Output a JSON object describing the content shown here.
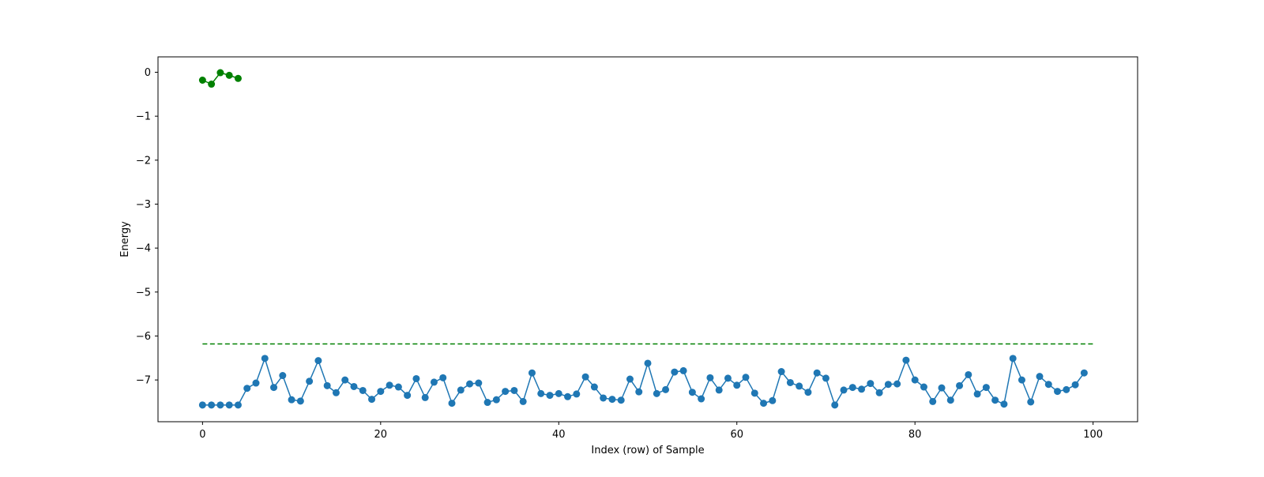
{
  "chart_data": {
    "type": "line",
    "title": "",
    "xlabel": "Index (row) of Sample",
    "ylabel": "Energy",
    "xlim": [
      -5,
      105
    ],
    "ylim": [
      -7.95,
      0.35
    ],
    "xticks": [
      0,
      20,
      40,
      60,
      80,
      100
    ],
    "yticks": [
      0,
      -1,
      -2,
      -3,
      -4,
      -5,
      -6,
      -7
    ],
    "xtick_labels": [
      "0",
      "20",
      "40",
      "60",
      "80",
      "100"
    ],
    "ytick_labels": [
      "0",
      "−1",
      "−2",
      "−3",
      "−4",
      "−5",
      "−6",
      "−7"
    ],
    "grid": false,
    "legend": "none",
    "series": [
      {
        "kind": "line-markers",
        "color": "#1f77b4",
        "x": [
          0,
          1,
          2,
          3,
          4,
          5,
          6,
          7,
          8,
          9,
          10,
          11,
          12,
          13,
          14,
          15,
          16,
          17,
          18,
          19,
          20,
          21,
          22,
          23,
          24,
          25,
          26,
          27,
          28,
          29,
          30,
          31,
          32,
          33,
          34,
          35,
          36,
          37,
          38,
          39,
          40,
          41,
          42,
          43,
          44,
          45,
          46,
          47,
          48,
          49,
          50,
          51,
          52,
          53,
          54,
          55,
          56,
          57,
          58,
          59,
          60,
          61,
          62,
          63,
          64,
          65,
          66,
          67,
          68,
          69,
          70,
          71,
          72,
          73,
          74,
          75,
          76,
          77,
          78,
          79,
          80,
          81,
          82,
          83,
          84,
          85,
          86,
          87,
          88,
          89,
          90,
          91,
          92,
          93,
          94,
          95,
          96,
          97,
          98,
          99
        ],
        "y": [
          -7.57,
          -7.57,
          -7.57,
          -7.57,
          -7.57,
          -7.19,
          -7.07,
          -6.51,
          -7.17,
          -6.9,
          -7.45,
          -7.48,
          -7.03,
          -6.56,
          -7.13,
          -7.29,
          -7.0,
          -7.15,
          -7.24,
          -7.44,
          -7.26,
          -7.12,
          -7.16,
          -7.35,
          -6.97,
          -7.4,
          -7.05,
          -6.95,
          -7.53,
          -7.23,
          -7.09,
          -7.07,
          -7.51,
          -7.45,
          -7.26,
          -7.24,
          -7.49,
          -6.84,
          -7.31,
          -7.35,
          -7.31,
          -7.38,
          -7.32,
          -6.93,
          -7.16,
          -7.41,
          -7.44,
          -7.46,
          -6.98,
          -7.27,
          -6.62,
          -7.31,
          -7.22,
          -6.82,
          -6.79,
          -7.28,
          -7.43,
          -6.95,
          -7.23,
          -6.96,
          -7.12,
          -6.94,
          -7.3,
          -7.53,
          -7.47,
          -6.81,
          -7.06,
          -7.14,
          -7.28,
          -6.84,
          -6.96,
          -7.57,
          -7.23,
          -7.17,
          -7.21,
          -7.08,
          -7.29,
          -7.1,
          -7.09,
          -6.55,
          -7.0,
          -7.16,
          -7.49,
          -7.18,
          -7.46,
          -7.13,
          -6.88,
          -7.32,
          -7.17,
          -7.46,
          -7.55,
          -6.51,
          -7.0,
          -7.5,
          -6.92,
          -7.1,
          -7.26,
          -7.22,
          -7.11,
          -6.84
        ]
      },
      {
        "kind": "line-markers",
        "color": "#008000",
        "x": [
          0,
          1,
          2,
          3,
          4
        ],
        "y": [
          -0.18,
          -0.27,
          -0.01,
          -0.07,
          -0.14
        ]
      },
      {
        "kind": "dashed-line",
        "color": "#008000",
        "x": [
          0,
          100
        ],
        "y": [
          -6.18,
          -6.18
        ]
      }
    ]
  }
}
